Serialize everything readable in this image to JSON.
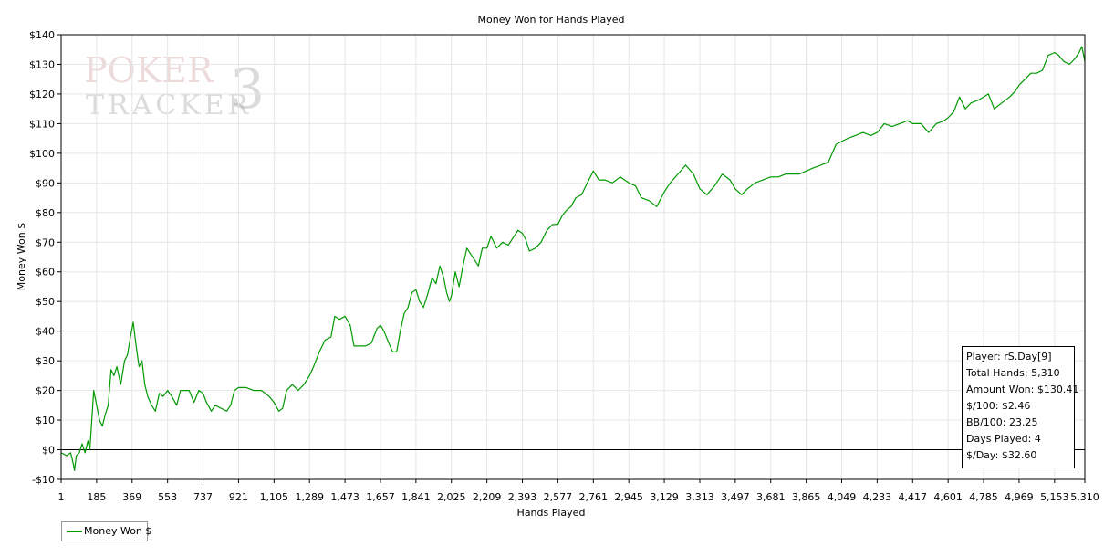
{
  "chart_data": {
    "type": "line",
    "title": "Money Won for Hands Played",
    "xlabel": "Hands Played",
    "ylabel": "Money Won $",
    "xlim": [
      1,
      5310
    ],
    "ylim": [
      -10,
      140
    ],
    "x_ticks": [
      1,
      185,
      369,
      553,
      737,
      921,
      1105,
      1289,
      1473,
      1657,
      1841,
      2025,
      2209,
      2393,
      2577,
      2761,
      2945,
      3129,
      3313,
      3497,
      3681,
      3865,
      4049,
      4233,
      4417,
      4601,
      4785,
      4969,
      5153,
      5310
    ],
    "x_tick_labels": [
      "1",
      "185",
      "369",
      "553",
      "737",
      "921",
      "1,105",
      "1,289",
      "1,473",
      "1,657",
      "1,841",
      "2,025",
      "2,209",
      "2,393",
      "2,577",
      "2,761",
      "2,945",
      "3,129",
      "3,313",
      "3,497",
      "3,681",
      "3,865",
      "4,049",
      "4,233",
      "4,417",
      "4,601",
      "4,785",
      "4,969",
      "5,153",
      "5,310"
    ],
    "y_ticks": [
      -10,
      0,
      10,
      20,
      30,
      40,
      50,
      60,
      70,
      80,
      90,
      100,
      110,
      120,
      130,
      140
    ],
    "y_tick_labels": [
      "-$10",
      "$0",
      "$10",
      "$20",
      "$30",
      "$40",
      "$50",
      "$60",
      "$70",
      "$80",
      "$90",
      "$100",
      "$110",
      "$120",
      "$130",
      "$140"
    ],
    "grid": true,
    "zero_line": true,
    "legend_position": "bottom-left",
    "series": [
      {
        "name": "Money Won $",
        "color": "#009900",
        "points": [
          [
            1,
            -1
          ],
          [
            30,
            -2
          ],
          [
            50,
            -1
          ],
          [
            65,
            -5
          ],
          [
            70,
            -7
          ],
          [
            80,
            -2
          ],
          [
            95,
            -1
          ],
          [
            110,
            2
          ],
          [
            125,
            -1
          ],
          [
            140,
            3
          ],
          [
            150,
            0
          ],
          [
            160,
            10
          ],
          [
            170,
            20
          ],
          [
            185,
            15
          ],
          [
            200,
            10
          ],
          [
            215,
            8
          ],
          [
            230,
            12
          ],
          [
            245,
            15
          ],
          [
            260,
            27
          ],
          [
            275,
            25
          ],
          [
            290,
            28
          ],
          [
            310,
            22
          ],
          [
            330,
            30
          ],
          [
            345,
            32
          ],
          [
            360,
            38
          ],
          [
            375,
            43
          ],
          [
            390,
            35
          ],
          [
            405,
            28
          ],
          [
            420,
            30
          ],
          [
            435,
            22
          ],
          [
            450,
            18
          ],
          [
            470,
            15
          ],
          [
            490,
            13
          ],
          [
            510,
            19
          ],
          [
            530,
            18
          ],
          [
            553,
            20
          ],
          [
            575,
            18
          ],
          [
            600,
            15
          ],
          [
            620,
            20
          ],
          [
            640,
            20
          ],
          [
            665,
            20
          ],
          [
            690,
            16
          ],
          [
            715,
            20
          ],
          [
            737,
            19
          ],
          [
            755,
            16
          ],
          [
            780,
            13
          ],
          [
            800,
            15
          ],
          [
            830,
            14
          ],
          [
            860,
            13
          ],
          [
            880,
            15
          ],
          [
            900,
            20
          ],
          [
            921,
            21
          ],
          [
            960,
            21
          ],
          [
            1000,
            20
          ],
          [
            1040,
            20
          ],
          [
            1080,
            18
          ],
          [
            1105,
            16
          ],
          [
            1130,
            13
          ],
          [
            1150,
            14
          ],
          [
            1170,
            20
          ],
          [
            1200,
            22
          ],
          [
            1230,
            20
          ],
          [
            1260,
            22
          ],
          [
            1289,
            25
          ],
          [
            1310,
            28
          ],
          [
            1340,
            33
          ],
          [
            1370,
            37
          ],
          [
            1400,
            38
          ],
          [
            1420,
            45
          ],
          [
            1445,
            44
          ],
          [
            1473,
            45
          ],
          [
            1500,
            42
          ],
          [
            1520,
            35
          ],
          [
            1550,
            35
          ],
          [
            1580,
            35
          ],
          [
            1610,
            36
          ],
          [
            1640,
            41
          ],
          [
            1657,
            42
          ],
          [
            1675,
            40
          ],
          [
            1700,
            36
          ],
          [
            1720,
            33
          ],
          [
            1741,
            33
          ],
          [
            1760,
            40
          ],
          [
            1780,
            46
          ],
          [
            1800,
            48
          ],
          [
            1820,
            53
          ],
          [
            1841,
            54
          ],
          [
            1860,
            50
          ],
          [
            1880,
            48
          ],
          [
            1900,
            52
          ],
          [
            1925,
            58
          ],
          [
            1945,
            56
          ],
          [
            1965,
            62
          ],
          [
            1985,
            58
          ],
          [
            2000,
            53
          ],
          [
            2015,
            50
          ],
          [
            2025,
            52
          ],
          [
            2045,
            60
          ],
          [
            2065,
            55
          ],
          [
            2085,
            62
          ],
          [
            2105,
            68
          ],
          [
            2125,
            66
          ],
          [
            2145,
            64
          ],
          [
            2165,
            62
          ],
          [
            2185,
            68
          ],
          [
            2209,
            68
          ],
          [
            2230,
            72
          ],
          [
            2260,
            68
          ],
          [
            2290,
            70
          ],
          [
            2320,
            69
          ],
          [
            2350,
            72
          ],
          [
            2370,
            74
          ],
          [
            2393,
            73
          ],
          [
            2410,
            71
          ],
          [
            2430,
            67
          ],
          [
            2460,
            68
          ],
          [
            2490,
            70
          ],
          [
            2520,
            74
          ],
          [
            2550,
            76
          ],
          [
            2577,
            76
          ],
          [
            2600,
            79
          ],
          [
            2625,
            81
          ],
          [
            2645,
            82
          ],
          [
            2670,
            85
          ],
          [
            2700,
            86
          ],
          [
            2730,
            90
          ],
          [
            2761,
            94
          ],
          [
            2790,
            91
          ],
          [
            2820,
            91
          ],
          [
            2860,
            90
          ],
          [
            2900,
            92
          ],
          [
            2945,
            90
          ],
          [
            2980,
            89
          ],
          [
            3010,
            85
          ],
          [
            3050,
            84
          ],
          [
            3090,
            82
          ],
          [
            3129,
            87
          ],
          [
            3160,
            90
          ],
          [
            3200,
            93
          ],
          [
            3240,
            96
          ],
          [
            3280,
            93
          ],
          [
            3313,
            88
          ],
          [
            3350,
            86
          ],
          [
            3390,
            89
          ],
          [
            3430,
            93
          ],
          [
            3470,
            91
          ],
          [
            3497,
            88
          ],
          [
            3530,
            86
          ],
          [
            3560,
            88
          ],
          [
            3600,
            90
          ],
          [
            3640,
            91
          ],
          [
            3681,
            92
          ],
          [
            3720,
            92
          ],
          [
            3760,
            93
          ],
          [
            3800,
            93
          ],
          [
            3830,
            93
          ],
          [
            3865,
            94
          ],
          [
            3900,
            95
          ],
          [
            3940,
            96
          ],
          [
            3980,
            97
          ],
          [
            4020,
            103
          ],
          [
            4049,
            104
          ],
          [
            4080,
            105
          ],
          [
            4120,
            106
          ],
          [
            4160,
            107
          ],
          [
            4200,
            106
          ],
          [
            4233,
            107
          ],
          [
            4270,
            110
          ],
          [
            4310,
            109
          ],
          [
            4350,
            110
          ],
          [
            4390,
            111
          ],
          [
            4417,
            110
          ],
          [
            4460,
            110
          ],
          [
            4500,
            107
          ],
          [
            4540,
            110
          ],
          [
            4580,
            111
          ],
          [
            4601,
            112
          ],
          [
            4630,
            114
          ],
          [
            4660,
            119
          ],
          [
            4690,
            115
          ],
          [
            4720,
            117
          ],
          [
            4760,
            118
          ],
          [
            4785,
            119
          ],
          [
            4810,
            120
          ],
          [
            4840,
            115
          ],
          [
            4880,
            117
          ],
          [
            4920,
            119
          ],
          [
            4950,
            121
          ],
          [
            4969,
            123
          ],
          [
            5000,
            125
          ],
          [
            5030,
            127
          ],
          [
            5060,
            127
          ],
          [
            5090,
            128
          ],
          [
            5120,
            133
          ],
          [
            5153,
            134
          ],
          [
            5175,
            133
          ],
          [
            5200,
            131
          ],
          [
            5230,
            130
          ],
          [
            5260,
            132
          ],
          [
            5280,
            134
          ],
          [
            5295,
            136
          ],
          [
            5310,
            131
          ]
        ]
      }
    ]
  },
  "stats_box": {
    "player": "Player: rS.Day[9]",
    "total_hands": "Total Hands: 5,310",
    "amount_won": "Amount Won: $130.41",
    "per_100": "$/100: $2.46",
    "bb_per_100": "BB/100: 23.25",
    "days_played": "Days Played: 4",
    "per_day": "$/Day: $32.60"
  },
  "watermark": {
    "line1": "POKER",
    "line2": "TRACKER",
    "number": "3"
  },
  "legend": {
    "label": "Money Won $"
  }
}
